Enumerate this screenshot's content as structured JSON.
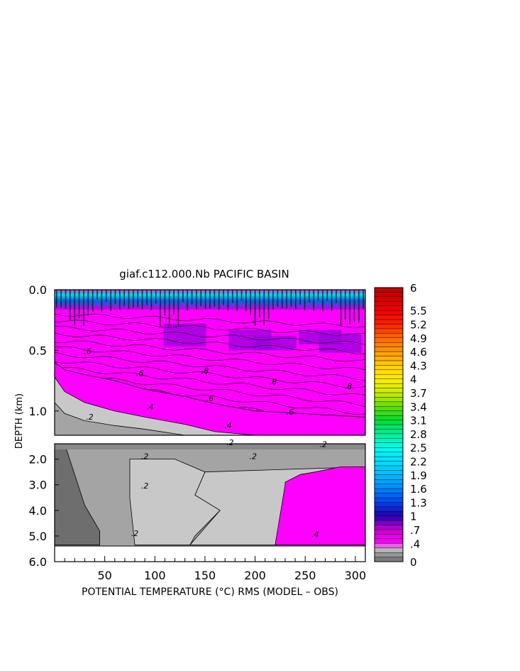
{
  "chart_data": {
    "type": "heatmap",
    "title": "giaf.c112.000.Nb PACIFIC BASIN",
    "xlabel": "POTENTIAL TEMPERATURE (°C) RMS (MODEL – OBS)",
    "ylabel": "DEPTH (km)",
    "xlim": [
      0,
      310
    ],
    "x_ticks": [
      "50",
      "100",
      "150",
      "200",
      "250",
      "300"
    ],
    "x_tick_values": [
      50,
      100,
      150,
      200,
      250,
      300
    ],
    "upper_panel": {
      "ylim": [
        0,
        1.2
      ],
      "y_ticks": [
        "0.0",
        "0.5",
        "1.0"
      ],
      "y_tick_values": [
        0.0,
        0.5,
        1.0
      ],
      "contour_labels": [
        {
          "text": ".2",
          "x": 35,
          "y": 1.07
        },
        {
          "text": ".4",
          "x": 95,
          "y": 0.99
        },
        {
          "text": ".4",
          "x": 173,
          "y": 1.14
        },
        {
          "text": ".6",
          "x": 33,
          "y": 0.53
        },
        {
          "text": ".6",
          "x": 85,
          "y": 0.71
        },
        {
          "text": ".6",
          "x": 155,
          "y": 0.92
        },
        {
          "text": ".6",
          "x": 235,
          "y": 1.03
        },
        {
          "text": ".8",
          "x": 150,
          "y": 0.69
        },
        {
          "text": ".8",
          "x": 218,
          "y": 0.78
        },
        {
          "text": ".8",
          "x": 293,
          "y": 0.82
        }
      ],
      "band_boundaries_depth": [
        {
          "level": 0.2,
          "x": [
            0,
            10,
            30,
            60,
            90,
            130,
            160,
            200,
            310
          ],
          "y": [
            0.93,
            1.02,
            1.08,
            1.12,
            1.15,
            1.2,
            1.2,
            1.2,
            1.2
          ]
        },
        {
          "level": 0.4,
          "x": [
            0,
            10,
            30,
            60,
            90,
            130,
            160,
            200,
            310
          ],
          "y": [
            0.72,
            0.84,
            0.93,
            1.0,
            1.05,
            1.11,
            1.17,
            1.2,
            1.2
          ]
        },
        {
          "level": 0.6,
          "x": [
            0,
            10,
            30,
            60,
            90,
            130,
            160,
            200,
            310
          ],
          "y": [
            0.6,
            0.66,
            0.7,
            0.75,
            0.82,
            0.88,
            0.94,
            1.0,
            1.05
          ]
        }
      ]
    },
    "lower_panel": {
      "ylim": [
        1.4,
        6.0
      ],
      "y_ticks": [
        "2.0",
        "3.0",
        "4.0",
        "5.0",
        "6.0"
      ],
      "y_tick_values": [
        2.0,
        3.0,
        4.0,
        5.0,
        6.0
      ],
      "bottom_depth": 5.35,
      "contour_labels": [
        {
          "text": ".2",
          "x": 175,
          "y": 1.45
        },
        {
          "text": ".2",
          "x": 268,
          "y": 1.52
        },
        {
          "text": ".2",
          "x": 90,
          "y": 2.0
        },
        {
          "text": ".2",
          "x": 198,
          "y": 2.0
        },
        {
          "text": ".2",
          "x": 90,
          "y": 3.15
        },
        {
          "text": ".2",
          "x": 80,
          "y": 5.0
        },
        {
          "text": ".4",
          "x": 260,
          "y": 5.05
        }
      ],
      "regions": [
        {
          "level": "0-0.1",
          "x": [
            0,
            10,
            20,
            30,
            45,
            45,
            0
          ],
          "y": [
            1.4,
            1.4,
            2.6,
            3.8,
            4.8,
            5.35,
            5.35
          ]
        },
        {
          "level": "0.3-0.4",
          "x": [
            75,
            120,
            150,
            140,
            165,
            140,
            135,
            80,
            75
          ],
          "y": [
            2.0,
            2.0,
            2.5,
            3.4,
            4.0,
            5.0,
            5.35,
            5.35,
            3.5
          ]
        },
        {
          "level": "0.4-0.5",
          "x": [
            230,
            245,
            260,
            285,
            310,
            310,
            280,
            220,
            230
          ],
          "y": [
            2.9,
            2.6,
            2.5,
            2.3,
            2.3,
            5.35,
            5.35,
            5.35,
            3.0
          ]
        }
      ]
    },
    "colorbar": {
      "min": 0,
      "max": 6,
      "tick_labels": [
        "6",
        "5.5",
        "5.2",
        "4.9",
        "4.6",
        "4.3",
        "4",
        "3.7",
        "3.4",
        "3.1",
        "2.8",
        "2.5",
        "2.2",
        "1.9",
        "1.6",
        "1.3",
        "1",
        ".7",
        ".4",
        "0"
      ],
      "tick_values": [
        6,
        5.5,
        5.2,
        4.9,
        4.6,
        4.3,
        4,
        3.7,
        3.4,
        3.1,
        2.8,
        2.5,
        2.2,
        1.9,
        1.6,
        1.3,
        1,
        0.7,
        0.4,
        0
      ],
      "color_stops": [
        {
          "v": 0,
          "c": "#6e6e6e"
        },
        {
          "v": 0.1,
          "c": "#888888"
        },
        {
          "v": 0.2,
          "c": "#a4a4a4"
        },
        {
          "v": 0.3,
          "c": "#c8c8c8"
        },
        {
          "v": 0.4,
          "c": "#ff00ff"
        },
        {
          "v": 0.7,
          "c": "#cc00cc"
        },
        {
          "v": 0.85,
          "c": "#7a00cc"
        },
        {
          "v": 1.0,
          "c": "#2200aa"
        },
        {
          "v": 1.3,
          "c": "#0044ee"
        },
        {
          "v": 1.6,
          "c": "#0088ff"
        },
        {
          "v": 1.9,
          "c": "#00bbff"
        },
        {
          "v": 2.2,
          "c": "#00e0ff"
        },
        {
          "v": 2.5,
          "c": "#00ffee"
        },
        {
          "v": 2.8,
          "c": "#00ee99"
        },
        {
          "v": 3.1,
          "c": "#00dd33"
        },
        {
          "v": 3.4,
          "c": "#66dd00"
        },
        {
          "v": 3.7,
          "c": "#ccee00"
        },
        {
          "v": 4.0,
          "c": "#ffee00"
        },
        {
          "v": 4.3,
          "c": "#ffcc00"
        },
        {
          "v": 4.6,
          "c": "#ff9900"
        },
        {
          "v": 4.9,
          "c": "#ff6600"
        },
        {
          "v": 5.2,
          "c": "#ff2200"
        },
        {
          "v": 5.5,
          "c": "#ee0000"
        },
        {
          "v": 6.0,
          "c": "#bb0000"
        }
      ]
    },
    "colors": {
      "magenta": "#ff00ff",
      "purple": "#9900dd",
      "light_gray": "#c8c8c8",
      "mid_gray": "#a4a4a4",
      "dark_gray": "#888888",
      "darkest_gray": "#6e6e6e"
    }
  }
}
